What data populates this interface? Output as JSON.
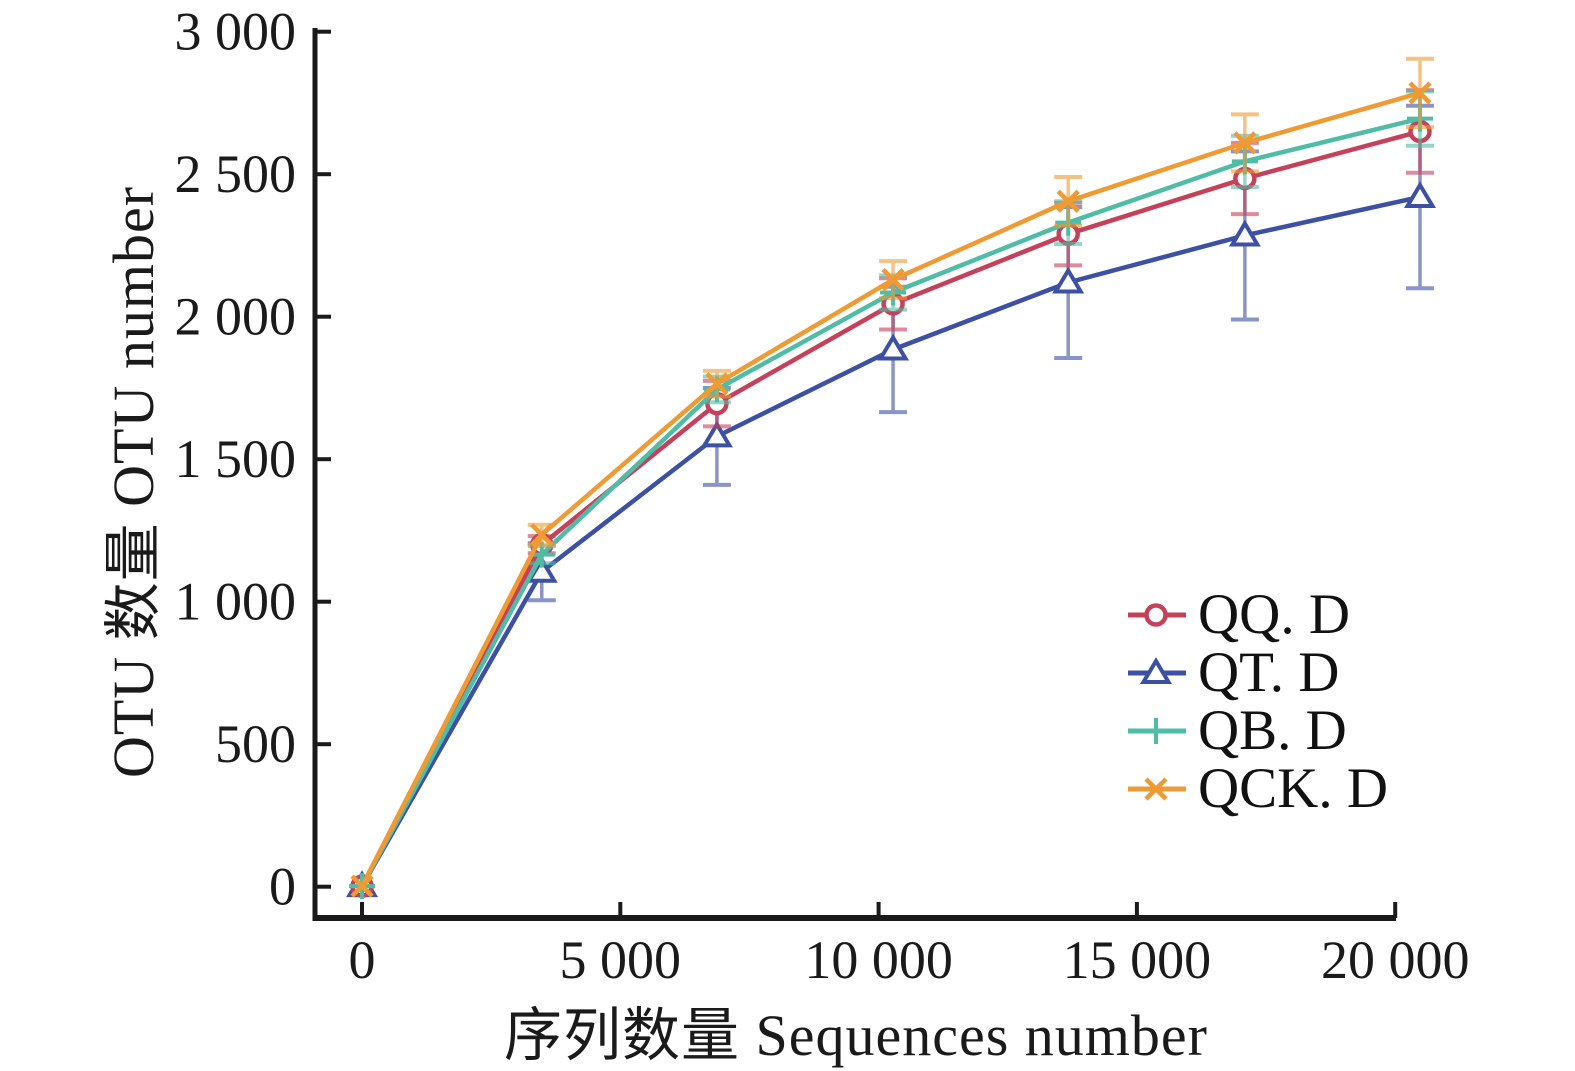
{
  "figure": {
    "background_color": "#ffffff",
    "axis_color": "#1a1a1a"
  },
  "chart_data": {
    "type": "line",
    "title": "",
    "xlabel": "序列数量 Sequences number",
    "ylabel": "OTU 数量 OTU number",
    "grid": false,
    "legend_position": "right-middle",
    "xlim": [
      0,
      20500
    ],
    "ylim": [
      0,
      3000
    ],
    "x_ticks": [
      {
        "value": 0,
        "label": "0"
      },
      {
        "value": 5000,
        "label": "5 000"
      },
      {
        "value": 10000,
        "label": "10 000"
      },
      {
        "value": 15000,
        "label": "15 000"
      },
      {
        "value": 20000,
        "label": "20 000"
      }
    ],
    "y_ticks": [
      {
        "value": 0,
        "label": "0"
      },
      {
        "value": 500,
        "label": "500"
      },
      {
        "value": 1000,
        "label": "1 000"
      },
      {
        "value": 1500,
        "label": "1 500"
      },
      {
        "value": 2000,
        "label": "2 000"
      },
      {
        "value": 2500,
        "label": "2 500"
      },
      {
        "value": 3000,
        "label": "3 000"
      }
    ],
    "x": [
      1,
      3480,
      6870,
      10280,
      13670,
      17090,
      20480
    ],
    "series": [
      {
        "name": "QQ. D",
        "color": "#C7405A",
        "marker": "circle",
        "values": [
          2,
          1200,
          1695,
          2045,
          2290,
          2485,
          2650
        ],
        "errors": [
          0,
          30,
          80,
          90,
          110,
          125,
          145
        ]
      },
      {
        "name": "QT. D",
        "color": "#3C50A5",
        "marker": "triangle",
        "values": [
          2,
          1105,
          1580,
          1885,
          2120,
          2285,
          2420
        ],
        "errors": [
          0,
          100,
          170,
          220,
          265,
          295,
          320
        ]
      },
      {
        "name": "QB. D",
        "color": "#4FBCA6",
        "marker": "plus",
        "values": [
          2,
          1165,
          1745,
          2085,
          2330,
          2545,
          2695
        ],
        "errors": [
          0,
          30,
          45,
          60,
          75,
          90,
          95
        ]
      },
      {
        "name": "QCK. D",
        "color": "#F09A33",
        "marker": "xcross",
        "values": [
          2,
          1235,
          1765,
          2130,
          2405,
          2610,
          2785
        ],
        "errors": [
          0,
          35,
          45,
          65,
          85,
          100,
          120
        ]
      }
    ]
  }
}
